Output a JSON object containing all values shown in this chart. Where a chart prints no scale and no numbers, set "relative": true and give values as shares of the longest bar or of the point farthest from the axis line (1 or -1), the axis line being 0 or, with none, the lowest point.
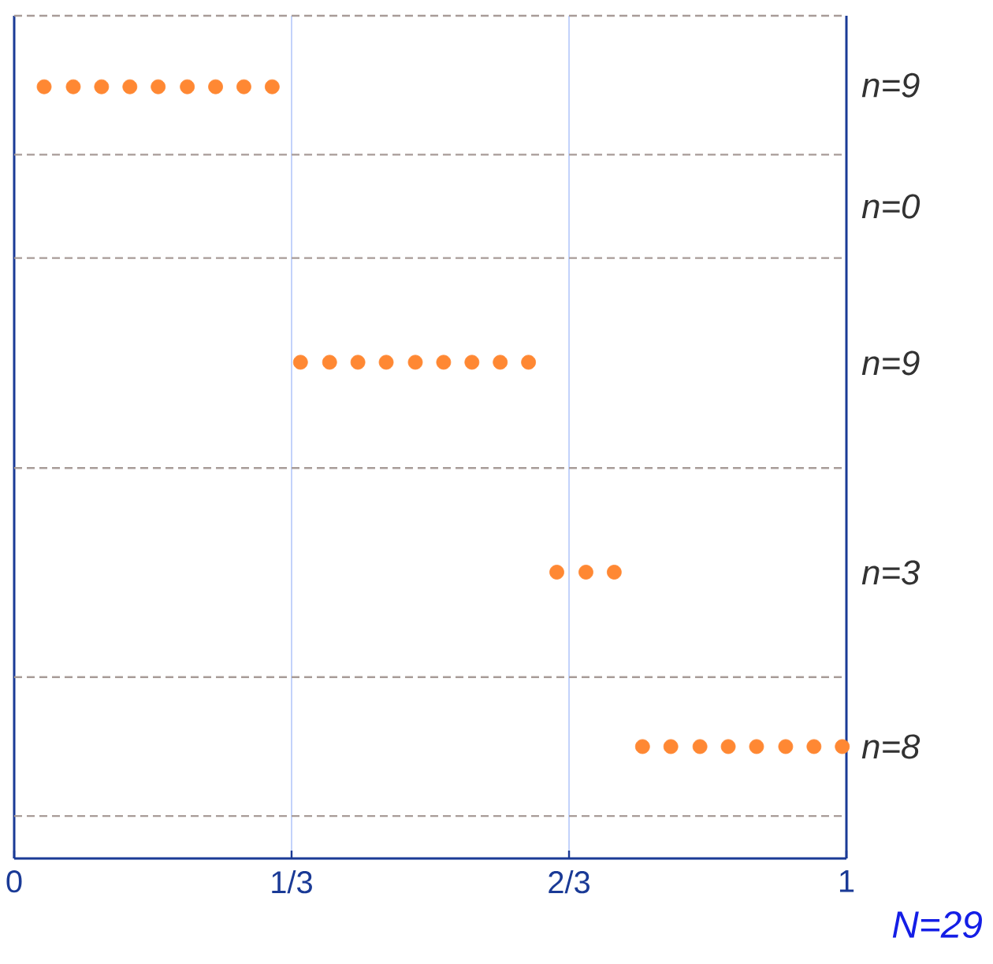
{
  "chart_data": {
    "type": "scatter",
    "relative": true,
    "marker": "circle",
    "grid": "x",
    "tick_labels": "x",
    "xlim": [
      0,
      1
    ],
    "xticks": [
      0,
      {
        "value": 0.3333,
        "label": "1/3"
      },
      {
        "value": 0.6667,
        "label": "2/3"
      },
      1
    ],
    "series": [
      {
        "color": "#ff8833",
        "x": [
          0.036,
          0.071,
          0.105,
          0.139,
          0.173,
          0.208,
          0.242,
          0.276,
          0.31,
          0.344,
          0.379,
          0.413,
          0.447,
          0.482,
          0.516,
          0.55,
          0.584,
          0.618,
          0.652,
          0.687,
          0.721,
          0.755,
          0.789,
          0.824,
          0.858,
          0.892,
          0.927,
          0.961,
          0.995
        ],
        "values": [
          1,
          1,
          1,
          1,
          1,
          1,
          1,
          1,
          1,
          0.643,
          0.643,
          0.643,
          0.643,
          0.643,
          0.643,
          0.643,
          0.643,
          0.643,
          0.371,
          0.371,
          0.371,
          0.145,
          0.145,
          0.145,
          0.145,
          0.145,
          0.145,
          0.145,
          0.145
        ]
      }
    ],
    "ref_lines": [
      {
        "axis": "y",
        "value": 1.092,
        "color": "#a89c98",
        "line_style": "dashed"
      },
      {
        "axis": "y",
        "value": 0.912,
        "color": "#a89c98",
        "line_style": "dashed"
      },
      {
        "axis": "y",
        "value": 0.778,
        "color": "#a89c98",
        "line_style": "dashed"
      },
      {
        "axis": "y",
        "value": 0.506,
        "color": "#a89c98",
        "line_style": "dashed"
      },
      {
        "axis": "y",
        "value": 0.235,
        "color": "#a89c98",
        "line_style": "dashed"
      },
      {
        "axis": "y",
        "value": 0.055,
        "color": "#a89c98",
        "line_style": "dashed"
      }
    ],
    "annotations": [
      "n=9",
      "n=0",
      "n=9",
      "n=3",
      "n=8",
      "N=29"
    ]
  }
}
